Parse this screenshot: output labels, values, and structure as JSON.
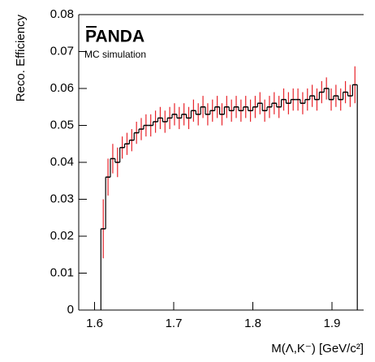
{
  "chart_data": {
    "type": "histogram",
    "title": "PANDA",
    "subtitle": "MC simulation",
    "x_label": "M(Λ,K⁻) [GeV/c²]",
    "y_label": "Reco. Efficiency",
    "bins": [
      1.608,
      1.614,
      1.62,
      1.626,
      1.632,
      1.638,
      1.644,
      1.65,
      1.656,
      1.662,
      1.668,
      1.674,
      1.68,
      1.686,
      1.692,
      1.698,
      1.704,
      1.71,
      1.716,
      1.722,
      1.728,
      1.734,
      1.74,
      1.746,
      1.752,
      1.758,
      1.764,
      1.77,
      1.776,
      1.782,
      1.788,
      1.794,
      1.8,
      1.806,
      1.812,
      1.818,
      1.824,
      1.83,
      1.836,
      1.842,
      1.848,
      1.854,
      1.86,
      1.866,
      1.872,
      1.878,
      1.884,
      1.89,
      1.896,
      1.902,
      1.908,
      1.914,
      1.92,
      1.926,
      1.932
    ],
    "values": [
      0.022,
      0.036,
      0.041,
      0.04,
      0.044,
      0.045,
      0.046,
      0.048,
      0.049,
      0.05,
      0.05,
      0.051,
      0.052,
      0.051,
      0.052,
      0.053,
      0.052,
      0.053,
      0.052,
      0.054,
      0.053,
      0.055,
      0.053,
      0.054,
      0.055,
      0.053,
      0.055,
      0.054,
      0.055,
      0.054,
      0.055,
      0.054,
      0.055,
      0.056,
      0.054,
      0.055,
      0.056,
      0.055,
      0.057,
      0.056,
      0.057,
      0.057,
      0.056,
      0.057,
      0.058,
      0.057,
      0.059,
      0.06,
      0.057,
      0.058,
      0.057,
      0.059,
      0.058,
      0.061
    ],
    "errors": [
      0.008,
      0.005,
      0.004,
      0.004,
      0.003,
      0.003,
      0.003,
      0.003,
      0.003,
      0.003,
      0.003,
      0.003,
      0.003,
      0.003,
      0.003,
      0.003,
      0.003,
      0.003,
      0.003,
      0.003,
      0.003,
      0.003,
      0.003,
      0.003,
      0.003,
      0.003,
      0.003,
      0.003,
      0.003,
      0.003,
      0.003,
      0.003,
      0.003,
      0.003,
      0.003,
      0.003,
      0.003,
      0.003,
      0.003,
      0.003,
      0.003,
      0.003,
      0.003,
      0.003,
      0.003,
      0.003,
      0.003,
      0.003,
      0.003,
      0.003,
      0.003,
      0.003,
      0.003,
      0.005
    ],
    "color": "#000000",
    "error_color": "#e8232a",
    "xlim": [
      1.58,
      1.94
    ],
    "xticks": [
      1.6,
      1.7,
      1.8,
      1.9
    ],
    "ylim": [
      0,
      0.08
    ],
    "yticks": [
      0,
      0.01,
      0.02,
      0.03,
      0.04,
      0.05,
      0.06,
      0.07,
      0.08
    ]
  }
}
